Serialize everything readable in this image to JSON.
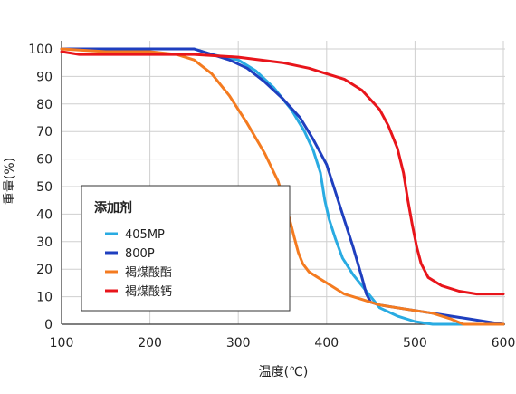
{
  "chart_data": {
    "type": "line",
    "xlabel": "温度(℃)",
    "ylabel": "重量(%)",
    "xlim": [
      100,
      600
    ],
    "ylim": [
      0,
      105
    ],
    "x_ticks": [
      "100",
      "200",
      "300",
      "400",
      "500",
      "600"
    ],
    "y_ticks": [
      "0",
      "10",
      "20",
      "30",
      "40",
      "50",
      "60",
      "70",
      "80",
      "90",
      "100"
    ],
    "grid": "vertical",
    "legend": {
      "title": "添加剂",
      "placement": "center-left"
    },
    "series": [
      {
        "name": "405MP",
        "color": "#29abe2",
        "points": [
          [
            100,
            100
          ],
          [
            150,
            100
          ],
          [
            200,
            100
          ],
          [
            250,
            100
          ],
          [
            270,
            98
          ],
          [
            300,
            96
          ],
          [
            320,
            92
          ],
          [
            340,
            86
          ],
          [
            360,
            78
          ],
          [
            375,
            70
          ],
          [
            385,
            63
          ],
          [
            393,
            55
          ],
          [
            398,
            45
          ],
          [
            403,
            38
          ],
          [
            410,
            31
          ],
          [
            418,
            24
          ],
          [
            430,
            18
          ],
          [
            440,
            14
          ],
          [
            450,
            10
          ],
          [
            460,
            6
          ],
          [
            480,
            3
          ],
          [
            500,
            1
          ],
          [
            520,
            0
          ],
          [
            600,
            0
          ]
        ]
      },
      {
        "name": "800P",
        "color": "#1f3fbf",
        "points": [
          [
            100,
            100
          ],
          [
            150,
            100
          ],
          [
            200,
            100
          ],
          [
            250,
            100
          ],
          [
            270,
            98
          ],
          [
            290,
            96
          ],
          [
            310,
            93
          ],
          [
            330,
            88
          ],
          [
            350,
            82
          ],
          [
            370,
            75
          ],
          [
            385,
            67
          ],
          [
            400,
            58
          ],
          [
            410,
            48
          ],
          [
            420,
            38
          ],
          [
            430,
            28
          ],
          [
            440,
            17
          ],
          [
            445,
            11
          ],
          [
            450,
            8
          ],
          [
            460,
            7
          ],
          [
            480,
            6
          ],
          [
            500,
            5
          ],
          [
            520,
            4
          ],
          [
            540,
            3
          ],
          [
            560,
            2
          ],
          [
            580,
            1
          ],
          [
            600,
            0
          ]
        ]
      },
      {
        "name": "褐煤酸酯",
        "color": "#f47b20",
        "points": [
          [
            100,
            100
          ],
          [
            150,
            99
          ],
          [
            200,
            99
          ],
          [
            230,
            98
          ],
          [
            250,
            96
          ],
          [
            270,
            91
          ],
          [
            290,
            83
          ],
          [
            310,
            73
          ],
          [
            330,
            62
          ],
          [
            345,
            52
          ],
          [
            355,
            42
          ],
          [
            363,
            32
          ],
          [
            368,
            26
          ],
          [
            373,
            22
          ],
          [
            380,
            19
          ],
          [
            390,
            17
          ],
          [
            400,
            15
          ],
          [
            420,
            11
          ],
          [
            440,
            9
          ],
          [
            460,
            7
          ],
          [
            480,
            6
          ],
          [
            500,
            5
          ],
          [
            520,
            4
          ],
          [
            540,
            2
          ],
          [
            555,
            0
          ],
          [
            600,
            0
          ]
        ]
      },
      {
        "name": "褐煤酸钙",
        "color": "#e8151b",
        "points": [
          [
            100,
            99
          ],
          [
            120,
            98
          ],
          [
            150,
            98
          ],
          [
            200,
            98
          ],
          [
            250,
            98
          ],
          [
            300,
            97
          ],
          [
            350,
            95
          ],
          [
            380,
            93
          ],
          [
            400,
            91
          ],
          [
            420,
            89
          ],
          [
            440,
            85
          ],
          [
            460,
            78
          ],
          [
            470,
            72
          ],
          [
            480,
            64
          ],
          [
            487,
            55
          ],
          [
            492,
            45
          ],
          [
            497,
            36
          ],
          [
            502,
            28
          ],
          [
            507,
            22
          ],
          [
            515,
            17
          ],
          [
            530,
            14
          ],
          [
            550,
            12
          ],
          [
            570,
            11
          ],
          [
            600,
            11
          ]
        ]
      }
    ]
  }
}
